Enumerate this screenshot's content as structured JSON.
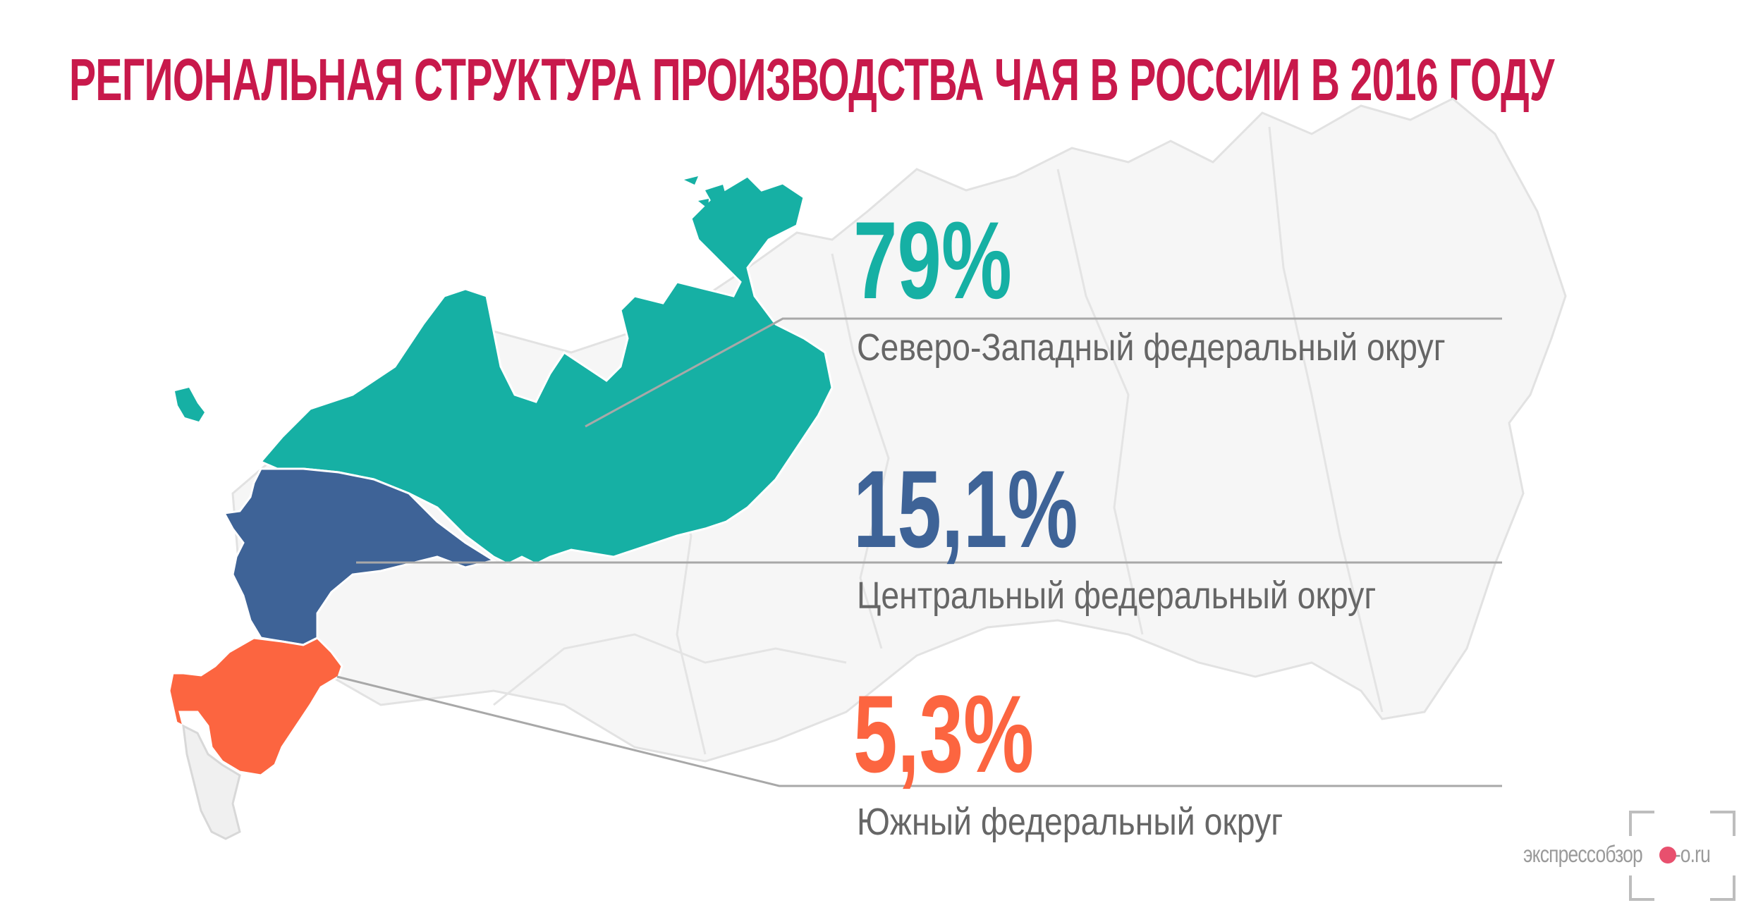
{
  "title": "Региональная структура производства чая в России в 2016 году",
  "colors": {
    "title": "#c8194b",
    "northwest": "#16b0a4",
    "central": "#3e6397",
    "south": "#fc6540",
    "map_background": "#f6f6f6",
    "map_outline": "#dddddd",
    "leader_line": "#a8a8a8",
    "watermark_dot": "#e8506e"
  },
  "regions": [
    {
      "id": "northwest",
      "percent": "79%",
      "label": "Северо-Западный федеральный округ",
      "color": "#16b0a4"
    },
    {
      "id": "central",
      "percent": "15,1%",
      "label": "Центральный федеральный округ",
      "color": "#3e6397"
    },
    {
      "id": "south",
      "percent": "5,3%",
      "label": "Южный федеральный округ",
      "color": "#fc6540"
    }
  ],
  "chart_data": {
    "type": "table",
    "categories": [
      "Северо-Западный федеральный округ",
      "Центральный федеральный округ",
      "Южный федеральный округ"
    ],
    "values": [
      79,
      15.1,
      5.3
    ],
    "value_labels": [
      "79%",
      "15,1%",
      "5,3%"
    ],
    "unit": "%"
  },
  "watermark": {
    "text": "экспрессобзор",
    "domain": "e-o.ru"
  }
}
